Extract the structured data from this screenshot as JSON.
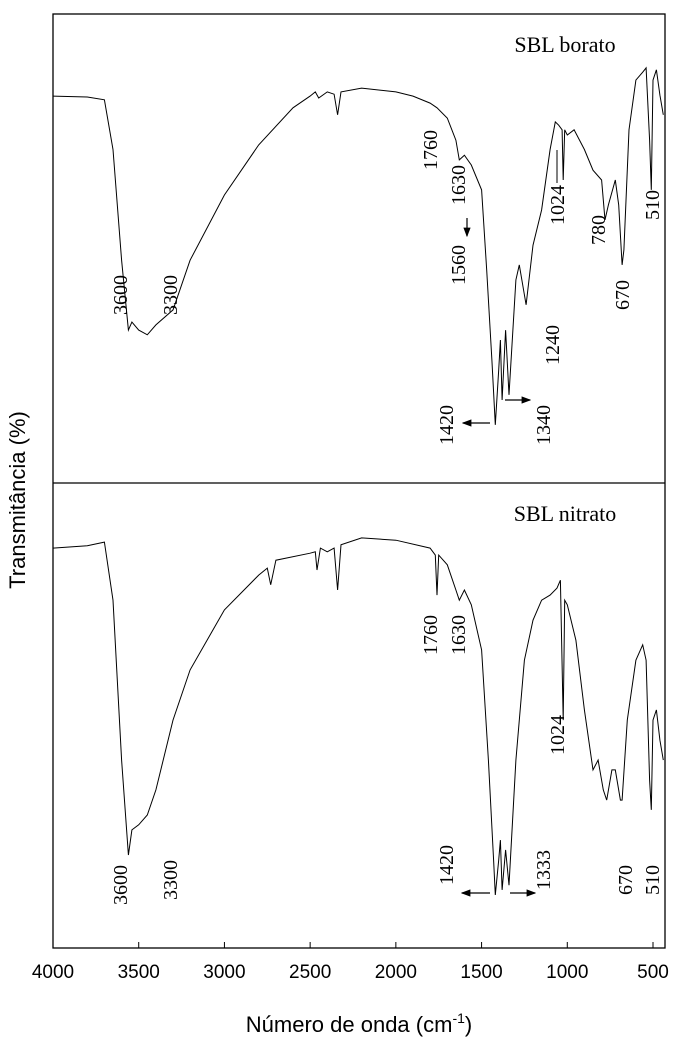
{
  "chart_data": {
    "type": "line",
    "xlabel": "Número de onda (cm",
    "xlabel_sup": "-1",
    "xlabel_end": ")",
    "ylabel": "Transmitância (%)",
    "xlim": [
      4000,
      430
    ],
    "xticks": [
      4000,
      3500,
      3000,
      2500,
      2000,
      1500,
      1000,
      500
    ],
    "color": "#000000",
    "panels": [
      {
        "title": "SBL borato",
        "ylim": [
          0,
          100
        ],
        "x": [
          4000,
          3800,
          3700,
          3650,
          3600,
          3560,
          3540,
          3500,
          3450,
          3400,
          3300,
          3200,
          3000,
          2800,
          2600,
          2500,
          2470,
          2450,
          2400,
          2360,
          2340,
          2320,
          2200,
          2000,
          1900,
          1800,
          1760,
          1700,
          1650,
          1630,
          1600,
          1560,
          1500,
          1470,
          1440,
          1420,
          1400,
          1390,
          1380,
          1360,
          1340,
          1300,
          1280,
          1240,
          1200,
          1150,
          1100,
          1070,
          1050,
          1030,
          1024,
          1015,
          1000,
          960,
          900,
          850,
          800,
          780,
          760,
          720,
          700,
          680,
          670,
          640,
          600,
          560,
          540,
          520,
          510,
          500,
          480,
          460,
          440
        ],
        "values": [
          82.5,
          82.3,
          81.7,
          71.1,
          47.5,
          32.6,
          34.3,
          32.6,
          31.6,
          33.7,
          36.9,
          47.5,
          61.4,
          72.1,
          80.0,
          82.5,
          83.4,
          82.1,
          83.4,
          82.9,
          78.5,
          83.4,
          84.2,
          83.4,
          82.5,
          81.0,
          80.0,
          77.8,
          73.1,
          68.9,
          69.9,
          67.8,
          62.5,
          45.4,
          26.2,
          12.4,
          24.1,
          30.5,
          17.7,
          32.6,
          18.8,
          43.3,
          46.5,
          38.0,
          50.7,
          58.2,
          71.1,
          77.0,
          76.3,
          75.3,
          64.6,
          75.3,
          74.2,
          75.3,
          71.1,
          66.7,
          64.6,
          56.1,
          59.3,
          64.6,
          59.3,
          46.5,
          49.7,
          75.3,
          85.9,
          87.6,
          88.5,
          73.1,
          62.5,
          85.9,
          88.1,
          82.7,
          78.5
        ],
        "peaks": [
          3600,
          3300,
          1760,
          1630,
          1560,
          1420,
          1340,
          1240,
          1024,
          780,
          670,
          510
        ]
      },
      {
        "title": "SBL nitrato",
        "ylim": [
          0,
          100
        ],
        "x": [
          4000,
          3800,
          3700,
          3650,
          3600,
          3560,
          3540,
          3500,
          3450,
          3400,
          3300,
          3200,
          3000,
          2800,
          2750,
          2730,
          2700,
          2500,
          2470,
          2460,
          2440,
          2400,
          2360,
          2340,
          2320,
          2200,
          2000,
          1800,
          1770,
          1760,
          1750,
          1700,
          1650,
          1630,
          1600,
          1560,
          1500,
          1460,
          1430,
          1420,
          1400,
          1390,
          1380,
          1360,
          1340,
          1300,
          1250,
          1200,
          1150,
          1100,
          1060,
          1040,
          1024,
          1015,
          1000,
          950,
          900,
          850,
          820,
          790,
          770,
          740,
          720,
          690,
          680,
          650,
          600,
          560,
          540,
          520,
          510,
          500,
          480,
          460,
          440
        ],
        "values": [
          86.0,
          86.5,
          87.3,
          74.8,
          40.4,
          20.0,
          25.4,
          26.5,
          28.6,
          34.0,
          49.0,
          59.8,
          72.7,
          80.2,
          81.7,
          78.1,
          83.4,
          84.9,
          85.2,
          81.3,
          86.0,
          85.2,
          86.0,
          77.0,
          86.7,
          88.2,
          87.7,
          86.0,
          84.5,
          75.9,
          84.5,
          82.4,
          77.0,
          74.8,
          77.0,
          73.8,
          64.1,
          40.4,
          18.9,
          11.4,
          18.9,
          23.2,
          12.5,
          21.1,
          13.5,
          40.4,
          61.9,
          70.5,
          74.8,
          75.9,
          77.4,
          79.1,
          49.0,
          74.8,
          73.8,
          66.2,
          51.2,
          38.3,
          40.4,
          34.0,
          31.8,
          38.3,
          38.3,
          31.8,
          31.8,
          49.0,
          61.9,
          65.2,
          61.9,
          36.1,
          29.7,
          49.0,
          51.2,
          44.7,
          40.4
        ],
        "peaks": [
          3600,
          3300,
          1760,
          1630,
          1420,
          1333,
          1024,
          670,
          510
        ]
      }
    ]
  }
}
